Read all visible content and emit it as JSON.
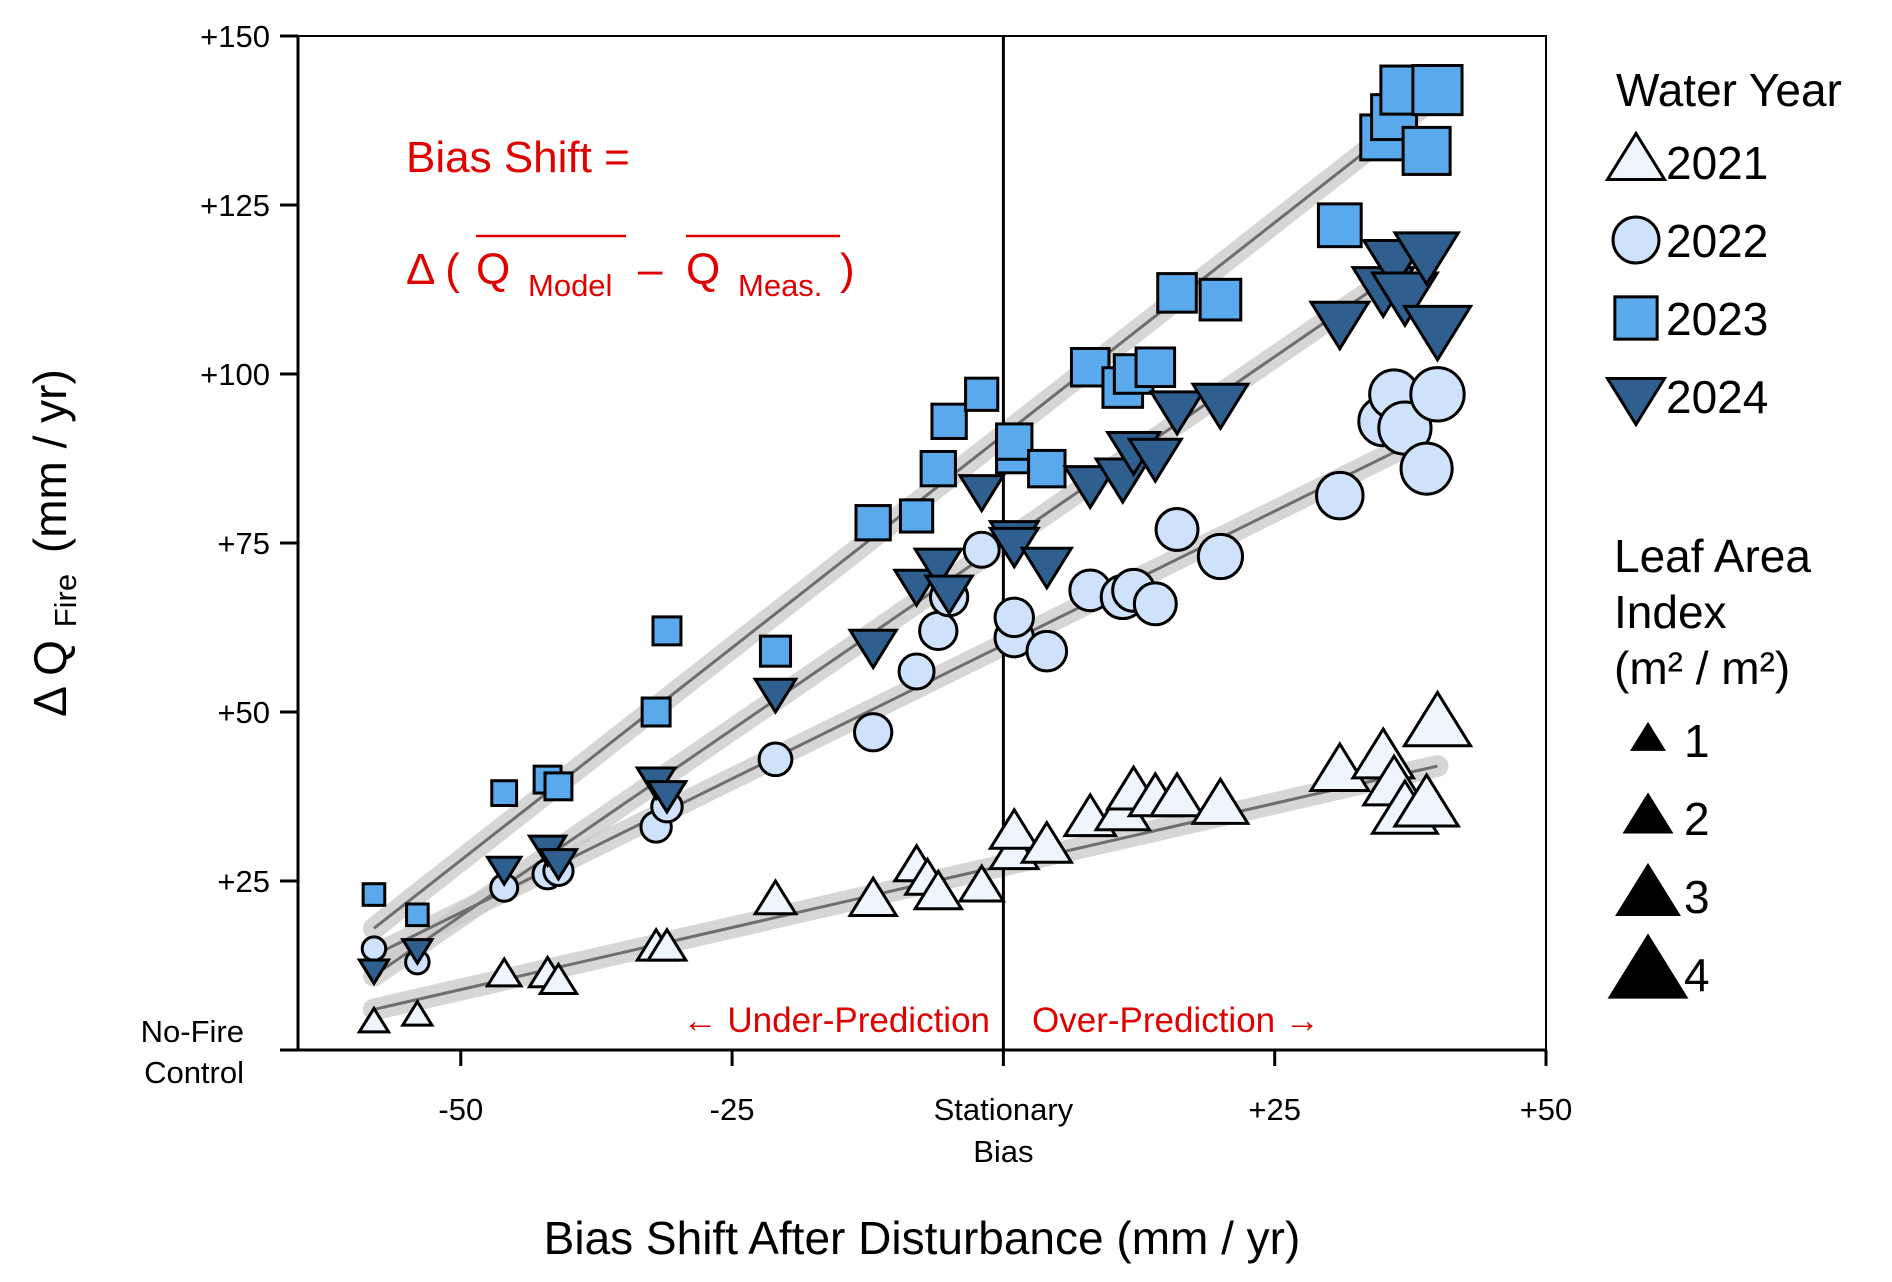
{
  "chart_data": {
    "type": "scatter",
    "xlabel": "Bias Shift After Disturbance (mm / yr)",
    "ylabel": {
      "prefix": "Δ Q",
      "sub": "Fire",
      "suffix": "(mm / yr)"
    },
    "xlim": [
      -65,
      50
    ],
    "ylim": [
      0,
      150
    ],
    "x_ticks": [
      {
        "value": -50,
        "label": "-50"
      },
      {
        "value": -25,
        "label": "-25"
      },
      {
        "value": 0,
        "label": "Stationary",
        "label2": "Bias"
      },
      {
        "value": 25,
        "label": "+25"
      },
      {
        "value": 50,
        "label": "+50"
      }
    ],
    "y_ticks": [
      {
        "value": 0,
        "label": "No-Fire",
        "label2": "Control"
      },
      {
        "value": 25,
        "label": "+25"
      },
      {
        "value": 50,
        "label": "+50"
      },
      {
        "value": 75,
        "label": "+75"
      },
      {
        "value": 100,
        "label": "+100"
      },
      {
        "value": 125,
        "label": "+125"
      },
      {
        "value": 150,
        "label": "+150"
      }
    ],
    "vline_x": 0,
    "grid": false,
    "annotations": {
      "bias_shift_title": "Bias Shift =",
      "formula_delta": "Δ (",
      "formula_q_model": "Q",
      "formula_model_sub": "Model",
      "formula_minus": "–",
      "formula_q_meas": "Q",
      "formula_meas_sub": "Meas.",
      "formula_close": ")",
      "under": "← Under-Prediction",
      "over": "Over-Prediction →"
    },
    "legend_placement": "right",
    "legend_title_year": "Water Year",
    "legend_title_lai": [
      "Leaf Area",
      "Index",
      "(m² / m²)"
    ],
    "lai_legend": [
      {
        "label": "1",
        "lai": 1
      },
      {
        "label": "2",
        "lai": 2
      },
      {
        "label": "3",
        "lai": 3
      },
      {
        "label": "4",
        "lai": 4
      }
    ],
    "series": [
      {
        "name": "2021",
        "marker": "triangle-up",
        "fill": "#eef5fd",
        "fit": [
          [
            -58,
            6
          ],
          [
            40,
            42
          ]
        ],
        "points": [
          [
            -58,
            4,
            1
          ],
          [
            -54,
            5,
            1
          ],
          [
            -46,
            11,
            1.3
          ],
          [
            -42,
            11,
            1.5
          ],
          [
            -41,
            10,
            1.5
          ],
          [
            -32,
            15,
            1.6
          ],
          [
            -31,
            15,
            1.6
          ],
          [
            -21,
            22,
            1.8
          ],
          [
            -12,
            22,
            2.2
          ],
          [
            -8,
            27,
            2.0
          ],
          [
            -7,
            25,
            2.0
          ],
          [
            -6,
            23,
            2.2
          ],
          [
            -2,
            24,
            2.0
          ],
          [
            1,
            29,
            2.3
          ],
          [
            1,
            32,
            2.3
          ],
          [
            4,
            30,
            2.4
          ],
          [
            8,
            34,
            2.5
          ],
          [
            11,
            35,
            2.7
          ],
          [
            12,
            38,
            2.6
          ],
          [
            14,
            37,
            2.6
          ],
          [
            16,
            37,
            2.6
          ],
          [
            20,
            36,
            2.8
          ],
          [
            31,
            41,
            3.0
          ],
          [
            35,
            43,
            3.2
          ],
          [
            36,
            39,
            3.2
          ],
          [
            37,
            35,
            3.5
          ],
          [
            39,
            36,
            3.4
          ],
          [
            40,
            48,
            3.6
          ]
        ]
      },
      {
        "name": "2022",
        "marker": "circle",
        "fill": "#cfe2fb",
        "fit": [
          [
            -58,
            14
          ],
          [
            38,
            90
          ]
        ],
        "points": [
          [
            -58,
            15,
            1
          ],
          [
            -54,
            13,
            1
          ],
          [
            -46,
            24,
            1.3
          ],
          [
            -42,
            26,
            1.5
          ],
          [
            -41,
            26.5,
            1.5
          ],
          [
            -32,
            33,
            1.6
          ],
          [
            -31,
            36,
            1.6
          ],
          [
            -21,
            43,
            1.8
          ],
          [
            -12,
            47,
            2.2
          ],
          [
            -8,
            56,
            2.0
          ],
          [
            -6,
            62,
            2.2
          ],
          [
            -5,
            67,
            2.2
          ],
          [
            -2,
            74,
            2.0
          ],
          [
            1,
            61,
            2.3
          ],
          [
            1,
            64,
            2.3
          ],
          [
            4,
            59,
            2.4
          ],
          [
            8,
            68,
            2.5
          ],
          [
            11,
            67,
            2.7
          ],
          [
            12,
            68,
            2.6
          ],
          [
            14,
            66,
            2.6
          ],
          [
            16,
            77,
            2.6
          ],
          [
            20,
            73,
            2.8
          ],
          [
            31,
            82,
            3.0
          ],
          [
            35,
            93,
            3.2
          ],
          [
            36,
            97,
            3.2
          ],
          [
            37,
            92,
            3.5
          ],
          [
            39,
            86,
            3.4
          ],
          [
            40,
            97,
            3.6
          ]
        ]
      },
      {
        "name": "2023",
        "marker": "square",
        "fill": "#5aa9ec",
        "fit": [
          [
            -58,
            18
          ],
          [
            39,
            140
          ]
        ],
        "points": [
          [
            -58,
            23,
            1
          ],
          [
            -54,
            20,
            1
          ],
          [
            -46,
            38,
            1.3
          ],
          [
            -42,
            40,
            1.5
          ],
          [
            -41,
            39,
            1.5
          ],
          [
            -32,
            50,
            1.6
          ],
          [
            -31,
            62,
            1.6
          ],
          [
            -21,
            59,
            1.8
          ],
          [
            -12,
            78,
            2.2
          ],
          [
            -8,
            79,
            2.0
          ],
          [
            -6,
            86,
            2.2
          ],
          [
            -5,
            93,
            2.2
          ],
          [
            -2,
            97,
            2.0
          ],
          [
            1,
            88,
            2.3
          ],
          [
            1,
            90,
            2.3
          ],
          [
            4,
            86,
            2.4
          ],
          [
            8,
            101,
            2.5
          ],
          [
            11,
            98,
            2.7
          ],
          [
            12,
            100,
            2.6
          ],
          [
            14,
            101,
            2.6
          ],
          [
            16,
            112,
            2.6
          ],
          [
            20,
            111,
            2.8
          ],
          [
            31,
            122,
            3.0
          ],
          [
            35,
            135,
            3.2
          ],
          [
            36,
            138,
            3.2
          ],
          [
            37,
            142,
            3.5
          ],
          [
            39,
            133,
            3.4
          ],
          [
            40,
            142,
            3.6
          ]
        ]
      },
      {
        "name": "2024",
        "marker": "triangle-down",
        "fill": "#2f5f8f",
        "fit": [
          [
            -58,
            11
          ],
          [
            39,
            118
          ]
        ],
        "points": [
          [
            -58,
            12,
            1
          ],
          [
            -54,
            15,
            1
          ],
          [
            -46,
            27,
            1.3
          ],
          [
            -42,
            30,
            1.5
          ],
          [
            -41,
            28,
            1.5
          ],
          [
            -32,
            40,
            1.6
          ],
          [
            -31,
            38,
            1.6
          ],
          [
            -21,
            53,
            1.8
          ],
          [
            -12,
            60,
            2.2
          ],
          [
            -8,
            69,
            2.0
          ],
          [
            -6,
            72,
            2.2
          ],
          [
            -5,
            68,
            2.2
          ],
          [
            -2,
            83,
            2.0
          ],
          [
            1,
            76,
            2.3
          ],
          [
            1,
            75,
            2.3
          ],
          [
            4,
            72,
            2.4
          ],
          [
            8,
            84,
            2.5
          ],
          [
            11,
            85,
            2.7
          ],
          [
            12,
            89,
            2.6
          ],
          [
            14,
            88,
            2.6
          ],
          [
            16,
            95,
            2.6
          ],
          [
            20,
            96,
            2.8
          ],
          [
            31,
            108,
            3.0
          ],
          [
            35,
            113,
            3.2
          ],
          [
            36,
            117,
            3.2
          ],
          [
            37,
            112,
            3.5
          ],
          [
            39,
            118,
            3.4
          ],
          [
            40,
            107,
            3.6
          ]
        ]
      }
    ]
  }
}
